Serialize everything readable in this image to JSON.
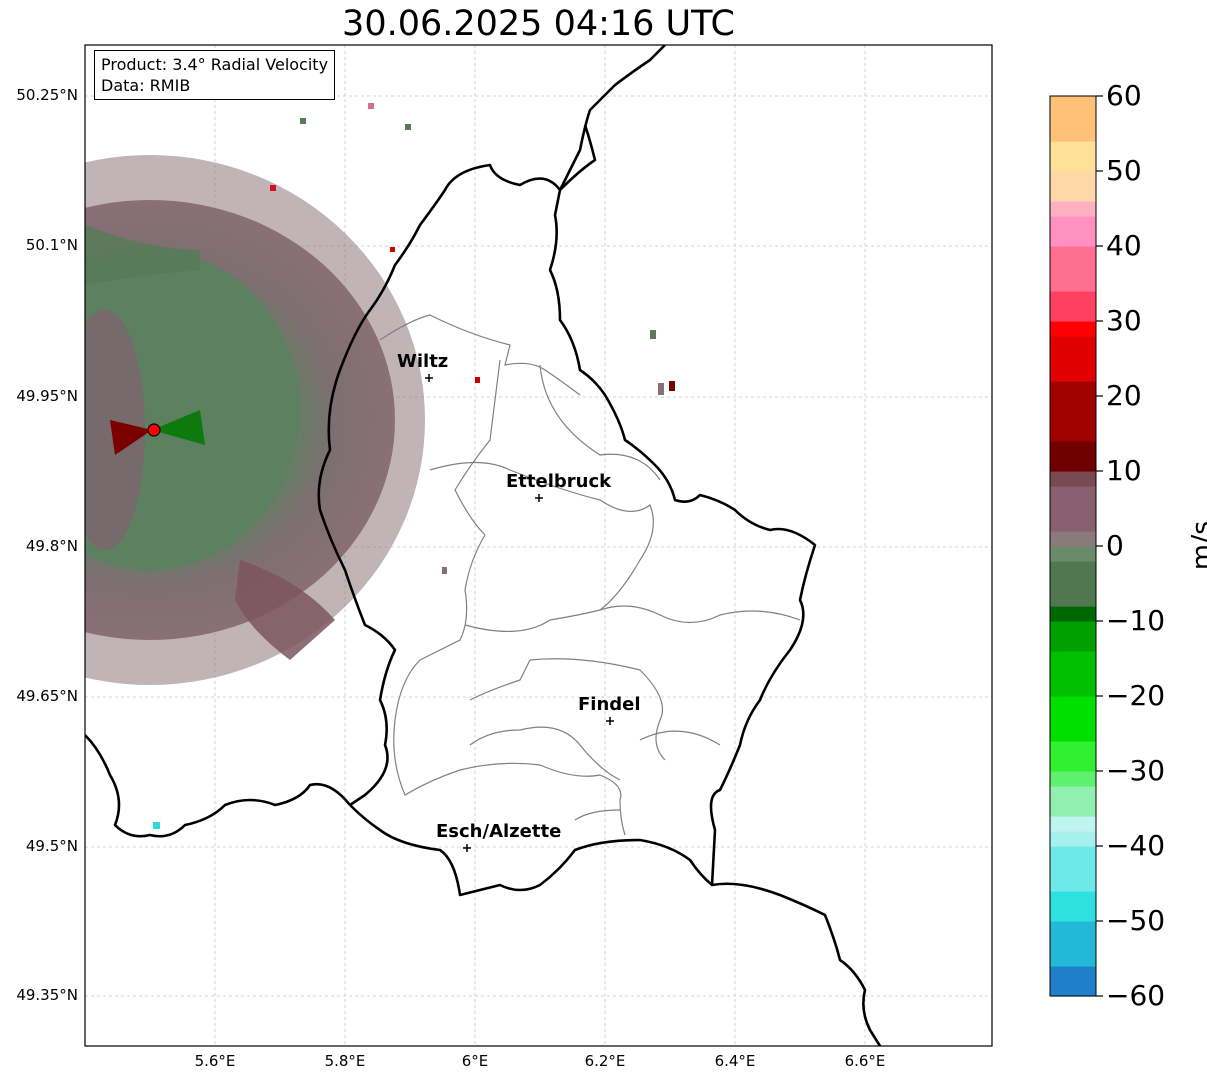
{
  "title": "30.06.2025 04:16 UTC",
  "info": {
    "product_line": "Product: 3.4° Radial Velocity",
    "data_line": "Data: RMIB"
  },
  "axes": {
    "lat_ticks": [
      "50.25°N",
      "50.1°N",
      "49.95°N",
      "49.8°N",
      "49.65°N",
      "49.5°N",
      "49.35°N"
    ],
    "lon_ticks": [
      "5.6°E",
      "5.8°E",
      "6°E",
      "6.2°E",
      "6.4°E",
      "6.6°E"
    ]
  },
  "colorbar": {
    "label": "m/s",
    "ticks": [
      "60",
      "50",
      "40",
      "30",
      "20",
      "10",
      "0",
      "−10",
      "−20",
      "−30",
      "−40",
      "−50",
      "−60"
    ],
    "min": -60,
    "max": 60
  },
  "cities": [
    {
      "name": "Wiltz"
    },
    {
      "name": "Ettelbruck"
    },
    {
      "name": "Findel"
    },
    {
      "name": "Esch/Alzette"
    }
  ],
  "colors": {
    "border": "#000000",
    "canton_lines": "#808080",
    "radar_site": "#ff0000"
  }
}
